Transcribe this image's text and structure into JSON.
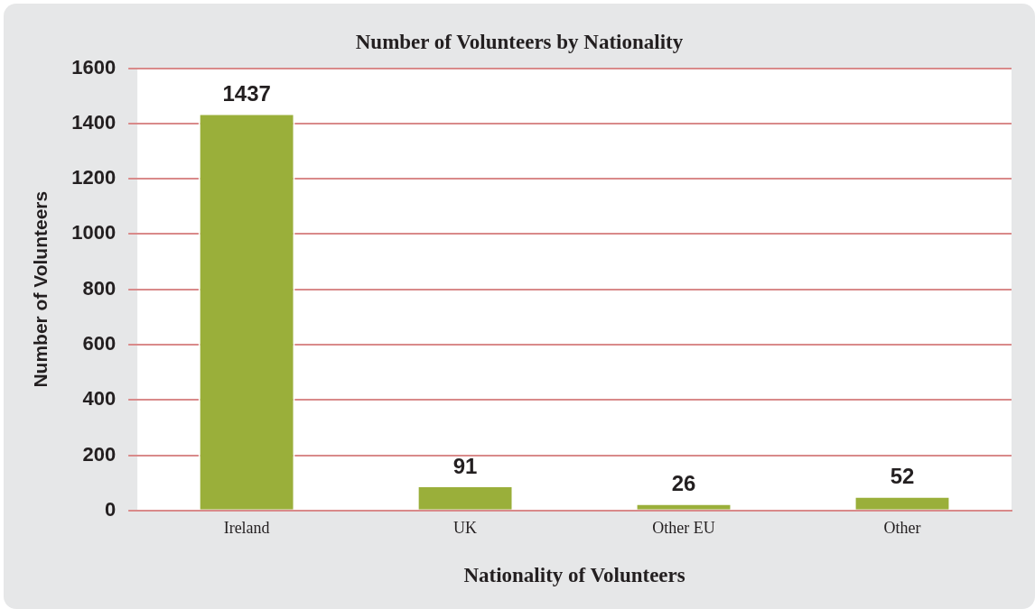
{
  "chart_data": {
    "type": "bar",
    "title": "Number of Volunteers by Nationality",
    "xlabel": "Nationality of Volunteers",
    "ylabel": "Number of Volunteers",
    "categories": [
      "Ireland",
      "UK",
      "Other EU",
      "Other"
    ],
    "values": [
      1437,
      91,
      26,
      52
    ],
    "color": "#9aaf3a",
    "ylim": [
      0,
      1600
    ],
    "yticks": [
      0,
      200,
      400,
      600,
      800,
      1000,
      1200,
      1400,
      1600
    ],
    "grid": "y",
    "data_labels": true
  }
}
